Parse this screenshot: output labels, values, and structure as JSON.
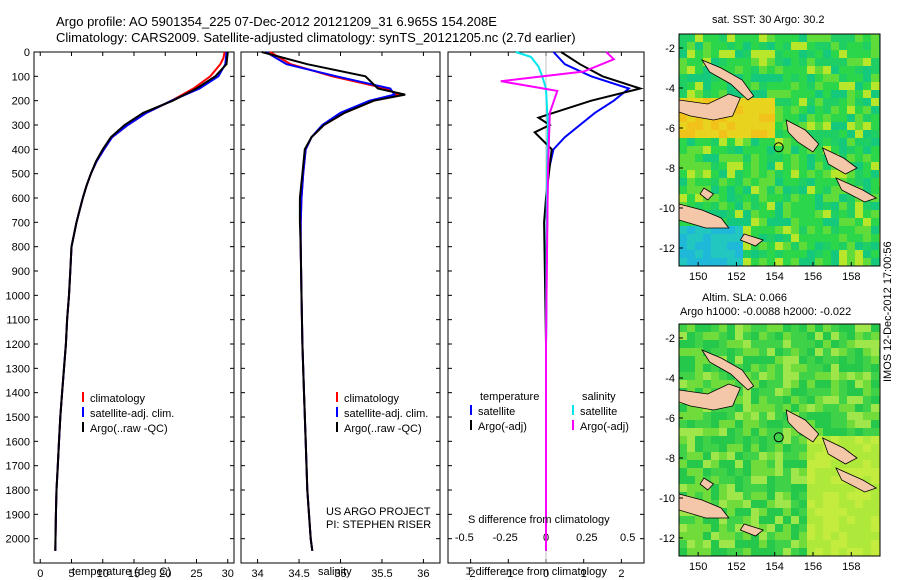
{
  "header": {
    "line1": "Argo profile: AO 5901354_225 07-Dec-2012 20121209_31 6.965S 154.208E",
    "line2": "Climatology: CARS2009. Satellite-adjusted climatology: synTS_20121205.nc (2.7d earlier)"
  },
  "colors": {
    "climatology": "#ff0000",
    "satellite": "#0000ff",
    "argo": "#000000",
    "satellite_salinity": "#00e5ee",
    "argo_salinity": "#ff00ff",
    "land": "#f4c7a8",
    "map_sea": "#2bd64a"
  },
  "credit": "IMOS 12-Dec-2012 17:00:56",
  "project": {
    "line1": "US ARGO PROJECT",
    "line2": "PI: STEPHEN RISER"
  },
  "panels": {
    "temperature": {
      "xlabel": "temperature (deg C)",
      "legend": [
        "climatology",
        "satellite-adj. clim.",
        "Argo(..raw -QC)"
      ]
    },
    "salinity": {
      "xlabel": "salinity",
      "legend": [
        "climatology",
        "satellite-adj. clim.",
        "Argo(..raw -QC)"
      ]
    },
    "difference": {
      "top_label": "S difference from climatology",
      "xlabel": "T difference from climatology",
      "legend_t_head": "temperature",
      "legend_t": [
        "satellite",
        "Argo(-adj)"
      ],
      "legend_s_head": "salinity",
      "legend_s": [
        "satellite",
        "Argo(-adj)"
      ]
    },
    "map_top": {
      "title": "sat. SST: 30 Argo: 30.2"
    },
    "map_bottom": {
      "title1": "Altim. SLA: 0.066",
      "title2": "Argo h1000: -0.0088 h2000: -0.022"
    }
  },
  "chart_data": [
    {
      "type": "line",
      "name": "temperature profile",
      "ylim": [
        2100,
        0
      ],
      "xlim": [
        -1,
        31
      ],
      "xticks": [
        0,
        5,
        10,
        15,
        20,
        25,
        30
      ],
      "yticks": [
        0,
        100,
        200,
        300,
        400,
        500,
        600,
        700,
        800,
        900,
        1000,
        1100,
        1200,
        1300,
        1400,
        1500,
        1600,
        1700,
        1800,
        1900,
        2000
      ],
      "series": [
        {
          "color": "climatology",
          "x": [
            29.5,
            29.3,
            28.8,
            27.2,
            24.5,
            21.0,
            17.0,
            14.0,
            11.5,
            10.2,
            9.0,
            8.1,
            7.4,
            6.8,
            6.3,
            5.8,
            5.4,
            5.0,
            4.8,
            4.6,
            4.3,
            4.1,
            3.8,
            3.5,
            3.2,
            3.0,
            2.8,
            2.6,
            2.5,
            2.4
          ],
          "y": [
            0,
            25,
            50,
            100,
            150,
            200,
            250,
            300,
            350,
            400,
            450,
            500,
            550,
            600,
            650,
            700,
            750,
            800,
            900,
            1000,
            1100,
            1200,
            1300,
            1400,
            1500,
            1600,
            1700,
            1800,
            1900,
            2050
          ]
        },
        {
          "color": "satellite",
          "x": [
            29.8,
            29.7,
            29.6,
            28.5,
            25.5,
            21.0,
            17.0,
            14.0,
            11.5,
            10.2,
            9.0,
            8.1,
            7.4,
            6.8,
            6.3,
            5.8,
            5.4,
            5.0,
            4.8,
            4.6,
            4.3,
            4.1,
            3.8,
            3.5,
            3.2,
            3.0,
            2.8,
            2.6,
            2.5,
            2.4
          ],
          "y": [
            0,
            25,
            50,
            100,
            150,
            200,
            250,
            300,
            350,
            400,
            450,
            500,
            550,
            600,
            650,
            700,
            750,
            800,
            900,
            1000,
            1100,
            1200,
            1300,
            1400,
            1500,
            1600,
            1700,
            1800,
            1900,
            2050
          ]
        },
        {
          "color": "argo",
          "x": [
            30.0,
            29.9,
            29.8,
            28.0,
            25.0,
            21.2,
            16.5,
            13.5,
            11.3,
            10.0,
            8.9,
            8.1,
            7.4,
            6.8,
            6.3,
            5.8,
            5.4,
            5.0,
            4.8,
            4.6,
            4.3,
            4.1,
            3.8,
            3.5,
            3.2,
            3.0,
            2.8,
            2.6,
            2.5,
            2.4
          ],
          "y": [
            0,
            25,
            50,
            100,
            150,
            200,
            250,
            300,
            350,
            400,
            450,
            500,
            550,
            600,
            650,
            700,
            750,
            800,
            900,
            1000,
            1100,
            1200,
            1300,
            1400,
            1500,
            1600,
            1700,
            1800,
            1900,
            2050
          ]
        }
      ]
    },
    {
      "type": "line",
      "name": "salinity profile",
      "ylim": [
        2100,
        0
      ],
      "xlim": [
        33.8,
        36.2
      ],
      "xticks": [
        34,
        34.5,
        35,
        35.5,
        36
      ],
      "series": [
        {
          "color": "climatology",
          "x": [
            34.15,
            34.4,
            34.9,
            35.55,
            35.7,
            35.4,
            35.05,
            34.8,
            34.65,
            34.58,
            34.55,
            34.53,
            34.52,
            34.52,
            34.53,
            34.54,
            34.56,
            34.58,
            34.6,
            34.62,
            34.64,
            34.66
          ],
          "y": [
            0,
            50,
            100,
            150,
            175,
            200,
            250,
            300,
            350,
            400,
            500,
            600,
            700,
            800,
            1000,
            1200,
            1400,
            1600,
            1800,
            1900,
            2000,
            2050
          ]
        },
        {
          "color": "satellite",
          "x": [
            34.1,
            34.35,
            34.95,
            35.6,
            35.65,
            35.35,
            35.0,
            34.78,
            34.65,
            34.58,
            34.55,
            34.53,
            34.52,
            34.52,
            34.53,
            34.54,
            34.56,
            34.58,
            34.6,
            34.62,
            34.64,
            34.66
          ],
          "y": [
            0,
            50,
            100,
            150,
            175,
            200,
            250,
            300,
            350,
            400,
            500,
            600,
            700,
            800,
            1000,
            1200,
            1400,
            1600,
            1800,
            1900,
            2000,
            2050
          ]
        },
        {
          "color": "argo",
          "x": [
            34.05,
            34.6,
            35.3,
            35.45,
            35.78,
            35.4,
            35.05,
            34.8,
            34.65,
            34.57,
            34.54,
            34.51,
            34.51,
            34.52,
            34.53,
            34.54,
            34.56,
            34.58,
            34.6,
            34.62,
            34.64,
            34.66
          ],
          "y": [
            0,
            50,
            100,
            150,
            175,
            200,
            250,
            300,
            350,
            400,
            500,
            600,
            700,
            800,
            1000,
            1200,
            1400,
            1600,
            1800,
            1900,
            2000,
            2050
          ]
        }
      ]
    },
    {
      "type": "line",
      "name": "difference from climatology",
      "ylim": [
        2100,
        0
      ],
      "xlim": [
        -2.6,
        2.6
      ],
      "xticks": [
        -2,
        -1,
        0,
        1,
        2
      ],
      "xticks_top": [
        -0.5,
        -0.25,
        0,
        0.25,
        0.5
      ],
      "series": [
        {
          "color": "satellite",
          "x": [
            0.2,
            0.5,
            1.2,
            2.2,
            1.8,
            1.3,
            0.9,
            0.5,
            0.2,
            0.05,
            0.02,
            0.0,
            0.0,
            0.0
          ],
          "y": [
            0,
            50,
            100,
            150,
            200,
            250,
            300,
            350,
            400,
            500,
            800,
            1200,
            1600,
            2050
          ]
        },
        {
          "color": "argo",
          "x": [
            0.4,
            0.9,
            1.5,
            2.5,
            1.2,
            0.2,
            -0.2,
            0.1,
            -0.3,
            0.15,
            0.0,
            -0.05,
            0.0,
            0.0
          ],
          "y": [
            0,
            50,
            100,
            150,
            200,
            250,
            270,
            300,
            330,
            400,
            600,
            700,
            1200,
            2050
          ]
        },
        {
          "color": "satellite_salinity",
          "x": [
            -0.8,
            -0.4,
            -0.2,
            -0.1,
            0.0,
            0.05,
            0.02,
            0.0,
            0.0
          ],
          "y": [
            0,
            20,
            60,
            100,
            150,
            300,
            600,
            1200,
            2050
          ]
        },
        {
          "color": "argo_salinity",
          "x": [
            1.6,
            1.8,
            1.0,
            -1.2,
            0.3,
            0.1,
            0.05,
            0.0,
            0.0
          ],
          "y": [
            0,
            30,
            80,
            120,
            160,
            250,
            500,
            1200,
            2050
          ]
        }
      ]
    },
    {
      "type": "heatmap",
      "name": "SST map",
      "xticks": [
        150,
        152,
        154,
        156,
        158
      ],
      "yticks": [
        -2,
        -4,
        -6,
        -8,
        -10,
        -12
      ]
    },
    {
      "type": "heatmap",
      "name": "SLA map",
      "xticks": [
        150,
        152,
        154,
        156,
        158
      ],
      "yticks": [
        -2,
        -4,
        -6,
        -8,
        -10,
        -12
      ]
    }
  ]
}
